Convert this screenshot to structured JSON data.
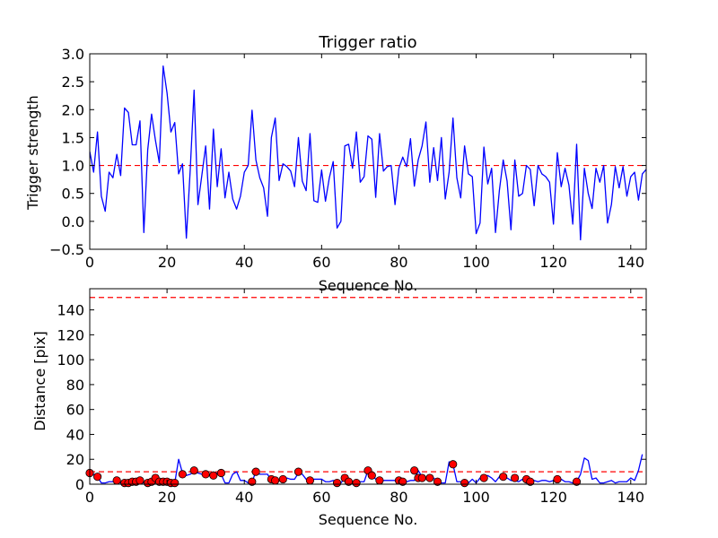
{
  "chart_data": [
    {
      "type": "line",
      "title": "Trigger ratio",
      "xlabel": "Sequence No.",
      "ylabel": "Trigger strength",
      "xlim": [
        0,
        144
      ],
      "ylim": [
        -0.5,
        3.0
      ],
      "xticks": [
        0,
        20,
        40,
        60,
        80,
        100,
        120,
        140
      ],
      "yticks": [
        -0.5,
        0.0,
        0.5,
        1.0,
        1.5,
        2.0,
        2.5,
        3.0
      ],
      "ytick_labels": [
        "−0.5",
        "0.0",
        "0.5",
        "1.0",
        "1.5",
        "2.0",
        "2.5",
        "3.0"
      ],
      "grid": false,
      "series": [
        {
          "color": "#0000ff",
          "values": [
            1.25,
            0.88,
            1.6,
            0.45,
            0.18,
            0.88,
            0.78,
            1.2,
            0.82,
            2.03,
            1.95,
            1.37,
            1.37,
            1.8,
            -0.2,
            1.28,
            1.92,
            1.45,
            1.05,
            2.78,
            2.3,
            1.6,
            1.77,
            0.85,
            1.03,
            -0.3,
            0.92,
            2.35,
            0.3,
            0.82,
            1.35,
            0.22,
            1.65,
            0.62,
            1.3,
            0.42,
            0.88,
            0.4,
            0.22,
            0.45,
            0.88,
            1.0,
            1.99,
            1.1,
            0.78,
            0.6,
            0.09,
            1.5,
            1.85,
            0.73,
            1.03,
            0.98,
            0.9,
            0.62,
            1.5,
            0.72,
            0.55,
            1.57,
            0.37,
            0.34,
            0.92,
            0.36,
            0.78,
            1.07,
            -0.12,
            0.0,
            1.35,
            1.38,
            0.95,
            1.6,
            0.7,
            0.8,
            1.53,
            1.47,
            0.43,
            1.57,
            0.9,
            0.98,
            1.0,
            0.3,
            0.95,
            1.15,
            0.98,
            1.48,
            0.63,
            1.1,
            1.35,
            1.78,
            0.7,
            1.32,
            0.73,
            1.5,
            0.4,
            0.88,
            1.85,
            0.78,
            0.42,
            1.35,
            0.85,
            0.8,
            -0.22,
            -0.03,
            1.33,
            0.67,
            0.95,
            -0.2,
            0.55,
            1.1,
            0.72,
            -0.15,
            1.1,
            0.45,
            0.5,
            1.0,
            0.93,
            0.28,
            1.0,
            0.85,
            0.8,
            0.7,
            -0.05,
            1.23,
            0.62,
            0.95,
            0.65,
            -0.05,
            1.38,
            -0.33,
            0.95,
            0.5,
            0.23,
            0.95,
            0.7,
            1.0,
            -0.03,
            0.3,
            0.98,
            0.6,
            0.98,
            0.45,
            0.8,
            0.88,
            0.38,
            0.85,
            0.93
          ]
        }
      ],
      "reference_line": {
        "y": 1.0,
        "color": "#ff0000",
        "style": "dashed"
      }
    },
    {
      "type": "line",
      "title": "",
      "xlabel": "Sequence No.",
      "ylabel": "Distance [pix]",
      "xlim": [
        0,
        144
      ],
      "ylim": [
        0,
        157
      ],
      "xticks": [
        0,
        20,
        40,
        60,
        80,
        100,
        120,
        140
      ],
      "yticks": [
        0,
        20,
        40,
        60,
        80,
        100,
        120,
        140
      ],
      "grid": false,
      "series": [
        {
          "color": "#0000ff",
          "values": [
            9,
            8,
            6,
            1,
            1,
            2,
            2,
            3,
            1,
            1,
            1,
            2,
            2,
            2,
            1,
            1,
            1,
            2,
            2,
            1,
            1,
            1,
            1,
            20,
            9,
            7,
            8,
            10,
            9,
            8,
            8,
            7,
            8,
            9,
            8,
            1,
            1,
            8,
            10,
            3,
            3,
            1,
            2,
            10,
            8,
            8,
            8,
            3,
            1,
            3,
            4,
            5,
            4,
            4,
            9,
            8,
            4,
            3,
            4,
            4,
            4,
            2,
            2,
            3,
            1,
            1,
            5,
            3,
            2,
            2,
            2,
            2,
            11,
            8,
            4,
            4,
            3,
            3,
            3,
            3,
            3,
            2,
            2,
            3,
            3,
            11,
            6,
            5,
            6,
            5,
            2,
            1,
            1,
            18,
            16,
            2,
            2,
            1,
            1,
            4,
            1,
            5,
            5,
            7,
            5,
            2,
            6,
            5,
            5,
            3,
            3,
            2,
            4,
            1,
            4,
            3,
            2,
            3,
            3,
            2,
            3,
            5,
            4,
            2,
            2,
            1,
            2,
            8,
            21,
            19,
            4,
            5,
            1,
            1,
            2,
            3,
            1,
            2,
            2,
            2,
            5,
            3,
            11,
            24
          ]
        }
      ],
      "markers": {
        "color": "#ff0000",
        "points": [
          [
            0,
            9
          ],
          [
            2,
            6
          ],
          [
            7,
            3
          ],
          [
            9,
            1
          ],
          [
            10,
            1
          ],
          [
            11,
            2
          ],
          [
            12,
            2
          ],
          [
            13,
            3
          ],
          [
            15,
            1
          ],
          [
            16,
            2
          ],
          [
            17,
            5
          ],
          [
            18,
            2
          ],
          [
            19,
            2
          ],
          [
            20,
            2
          ],
          [
            21,
            1
          ],
          [
            22,
            1
          ],
          [
            24,
            8
          ],
          [
            27,
            11
          ],
          [
            30,
            8
          ],
          [
            32,
            7
          ],
          [
            34,
            9
          ],
          [
            42,
            2
          ],
          [
            43,
            10
          ],
          [
            47,
            4
          ],
          [
            48,
            3
          ],
          [
            50,
            4
          ],
          [
            54,
            10
          ],
          [
            57,
            3
          ],
          [
            64,
            1
          ],
          [
            66,
            5
          ],
          [
            67,
            2
          ],
          [
            69,
            1
          ],
          [
            72,
            11
          ],
          [
            73,
            7
          ],
          [
            75,
            3
          ],
          [
            80,
            3
          ],
          [
            81,
            2
          ],
          [
            84,
            11
          ],
          [
            85,
            5
          ],
          [
            86,
            5
          ],
          [
            88,
            5
          ],
          [
            90,
            2
          ],
          [
            94,
            16
          ],
          [
            97,
            1
          ],
          [
            102,
            5
          ],
          [
            107,
            6
          ],
          [
            110,
            5
          ],
          [
            113,
            4
          ],
          [
            114,
            2
          ],
          [
            121,
            4
          ],
          [
            126,
            2
          ]
        ]
      },
      "reference_lines": [
        {
          "y": 10,
          "color": "#ff0000",
          "style": "dashed"
        },
        {
          "y": 150,
          "color": "#ff0000",
          "style": "dashed"
        }
      ]
    }
  ]
}
